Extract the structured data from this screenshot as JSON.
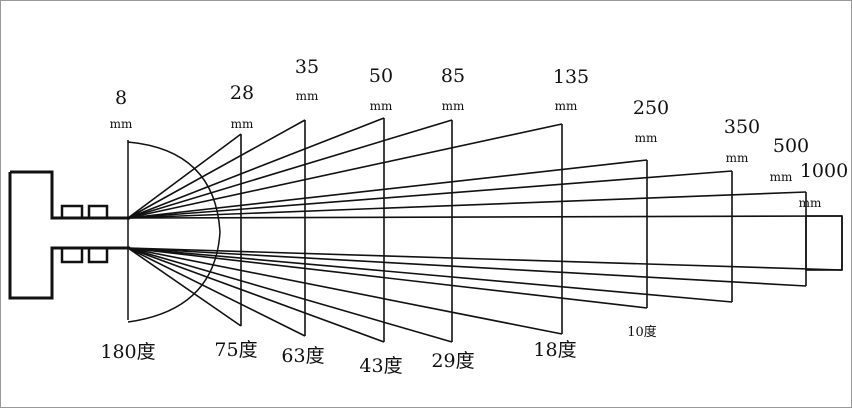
{
  "lenses": [
    {
      "focal": "8",
      "unit": "mm",
      "angle": "180度"
    },
    {
      "focal": "28",
      "unit": "mm",
      "angle": "75度"
    },
    {
      "focal": "35",
      "unit": "mm",
      "angle": "63度"
    },
    {
      "focal": "50",
      "unit": "mm",
      "angle": "43度"
    },
    {
      "focal": "85",
      "unit": "mm",
      "angle": "29度"
    },
    {
      "focal": "135",
      "unit": "mm",
      "angle": "18度"
    },
    {
      "focal": "250",
      "unit": "mm",
      "angle": "10度"
    },
    {
      "focal": "350",
      "unit": "mm",
      "angle": ""
    },
    {
      "focal": "500",
      "unit": "mm",
      "angle": ""
    },
    {
      "focal": "1000",
      "unit": "mm",
      "angle": ""
    }
  ]
}
